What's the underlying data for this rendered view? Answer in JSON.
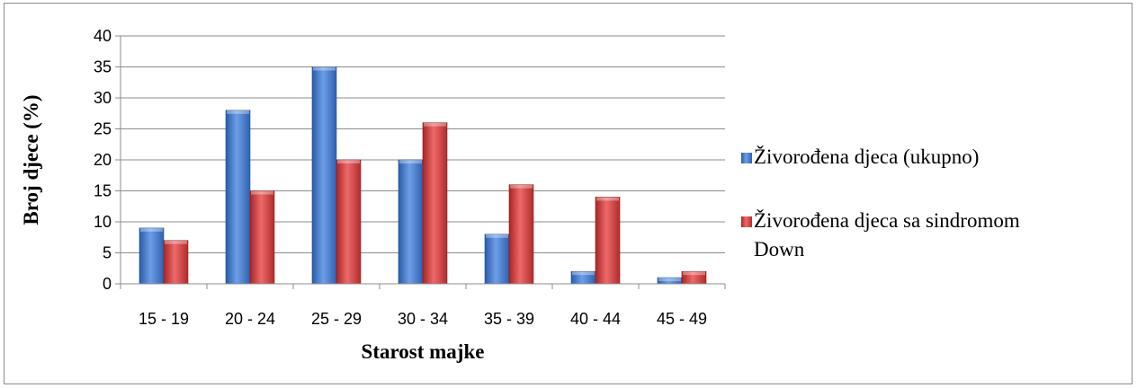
{
  "chart_data": {
    "type": "bar",
    "title": "",
    "xlabel": "Starost majke",
    "ylabel": "Broj djece (%)",
    "ylim": [
      0,
      40
    ],
    "yticks": [
      0,
      5,
      10,
      15,
      20,
      25,
      30,
      35,
      40
    ],
    "grid": true,
    "legend_position": "right",
    "categories": [
      "15 - 19",
      "20 - 24",
      "25 - 29",
      "30 - 34",
      "35 - 39",
      "40 - 44",
      "45 - 49"
    ],
    "series": [
      {
        "name": "Živorođena djeca (ukupno)",
        "values": [
          9,
          28,
          35,
          20,
          8,
          2,
          1
        ],
        "color": "#3f76c9"
      },
      {
        "name": "Živorođena djeca sa sindromom Down",
        "values": [
          7,
          15,
          20,
          26,
          16,
          14,
          2
        ],
        "color": "#cf3b3b"
      }
    ]
  }
}
